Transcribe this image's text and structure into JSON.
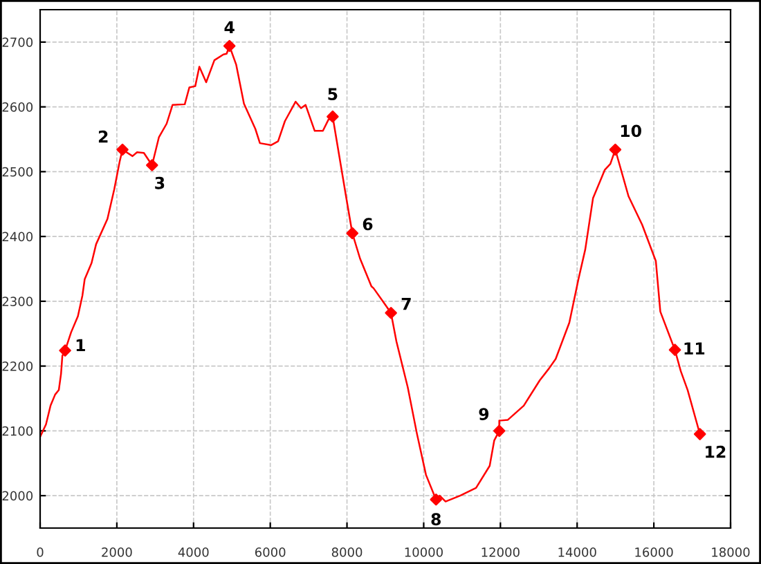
{
  "chart_data": {
    "type": "line",
    "xlim": [
      0,
      18000
    ],
    "ylim": [
      1950,
      2750
    ],
    "xticks": [
      0,
      2000,
      4000,
      6000,
      8000,
      10000,
      12000,
      14000,
      16000,
      18000
    ],
    "yticks": [
      2000,
      2100,
      2200,
      2300,
      2400,
      2500,
      2600,
      2700
    ],
    "grid": true,
    "legend": false,
    "series": [
      {
        "color": "#ff0000",
        "marker": "none",
        "line_style": "solid",
        "x": [
          10,
          153,
          272,
          391,
          487,
          545,
          580,
          651,
          807,
          985,
          1103,
          1162,
          1341,
          1459,
          1755,
          1933,
          2075,
          2147,
          2409,
          2527,
          2705,
          2918,
          3096,
          3298,
          3452,
          3771,
          3890,
          4044,
          4151,
          4329,
          4543,
          4780,
          4862,
          4936,
          5112,
          5314,
          5611,
          5730,
          6026,
          6204,
          6382,
          6660,
          6802,
          6921,
          7158,
          7372,
          7514,
          7627,
          7983,
          8139,
          8340,
          8637,
          8695,
          8993,
          9147,
          9289,
          9585,
          9822,
          10060,
          10321,
          10416,
          10570,
          10950,
          11365,
          11720,
          11838,
          11970,
          11970,
          12017,
          12195,
          12610,
          13026,
          13263,
          13441,
          13797,
          14034,
          14212,
          14414,
          14723,
          14866,
          14995,
          15340,
          15696,
          16052,
          16169,
          16549,
          16703,
          16881,
          17201
        ],
        "values": [
          2092,
          2110,
          2139,
          2156,
          2163,
          2188,
          2216,
          2224,
          2252,
          2277,
          2309,
          2334,
          2359,
          2388,
          2427,
          2473,
          2516,
          2534,
          2524,
          2530,
          2529,
          2510,
          2553,
          2574,
          2603,
          2604,
          2630,
          2632,
          2662,
          2638,
          2672,
          2681,
          2682,
          2694,
          2665,
          2605,
          2566,
          2544,
          2541,
          2547,
          2578,
          2608,
          2598,
          2603,
          2563,
          2563,
          2580,
          2585,
          2459,
          2405,
          2366,
          2323,
          2320,
          2295,
          2282,
          2238,
          2167,
          2096,
          2032,
          1994,
          2000,
          1991,
          2000,
          2012,
          2046,
          2085,
          2100,
          2116,
          2116,
          2117,
          2139,
          2178,
          2196,
          2211,
          2267,
          2334,
          2380,
          2459,
          2503,
          2512,
          2534,
          2462,
          2418,
          2362,
          2284,
          2225,
          2192,
          2163,
          2095
        ]
      },
      {
        "type": "scatter",
        "color": "#ff0000",
        "marker": "diamond",
        "x": [
          651,
          2147,
          2918,
          4936,
          7627,
          8139,
          9147,
          10321,
          11970,
          14995,
          16549,
          17201
        ],
        "values": [
          2224,
          2534,
          2510,
          2694,
          2585,
          2405,
          2282,
          1994,
          2100,
          2534,
          2225,
          2095
        ]
      }
    ],
    "annotations": [
      {
        "text": "1",
        "x": 651,
        "y": 2224
      },
      {
        "text": "2",
        "x": 2147,
        "y": 2534
      },
      {
        "text": "3",
        "x": 2918,
        "y": 2510
      },
      {
        "text": "4",
        "x": 4936,
        "y": 2694
      },
      {
        "text": "5",
        "x": 7627,
        "y": 2585
      },
      {
        "text": "6",
        "x": 8139,
        "y": 2405
      },
      {
        "text": "7",
        "x": 9147,
        "y": 2282
      },
      {
        "text": "8",
        "x": 10321,
        "y": 1994
      },
      {
        "text": "9",
        "x": 11970,
        "y": 2100
      },
      {
        "text": "10",
        "x": 14995,
        "y": 2534
      },
      {
        "text": "11",
        "x": 16549,
        "y": 2225
      },
      {
        "text": "12",
        "x": 17201,
        "y": 2095
      }
    ]
  }
}
